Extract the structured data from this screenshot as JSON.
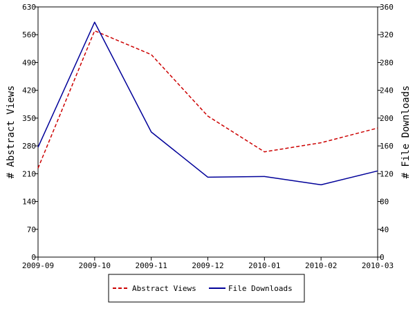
{
  "chart_data": {
    "type": "line",
    "categories": [
      "2009-09",
      "2009-10",
      "2009-11",
      "2009-12",
      "2010-01",
      "2010-02",
      "2010-03"
    ],
    "y_left": {
      "label": "# Abstract Views",
      "ylim": [
        0,
        630
      ],
      "ticks": [
        0,
        70,
        140,
        210,
        280,
        350,
        420,
        490,
        560,
        630
      ]
    },
    "y_right": {
      "label": "# File Downloads",
      "ylim": [
        0,
        360
      ],
      "ticks": [
        0,
        40,
        80,
        120,
        160,
        200,
        240,
        280,
        320,
        360
      ]
    },
    "series": [
      {
        "name": "Abstract Views",
        "axis": "left",
        "color": "#cc0000",
        "dashed": true,
        "values": [
          224,
          570,
          510,
          355,
          265,
          288,
          325
        ]
      },
      {
        "name": "File Downloads",
        "axis": "right",
        "color": "#000099",
        "dashed": false,
        "values": [
          158,
          338,
          180,
          115,
          116,
          104,
          124
        ]
      }
    ],
    "grid": false,
    "legend": "bottom"
  }
}
